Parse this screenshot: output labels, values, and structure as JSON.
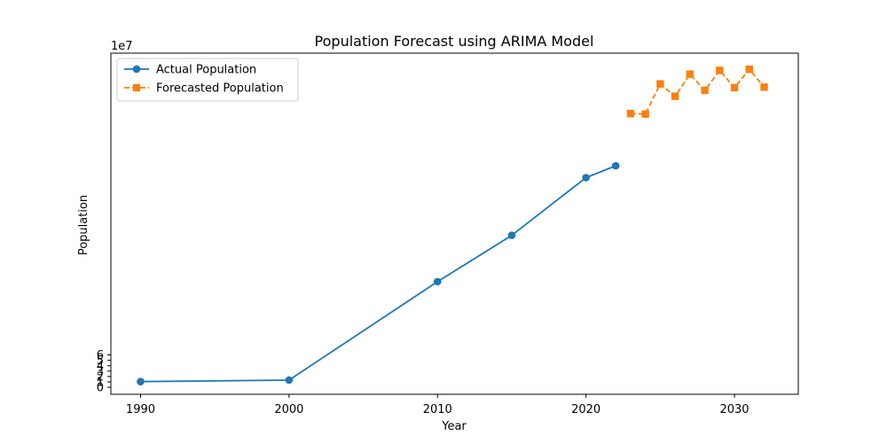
{
  "chart_data": {
    "type": "line",
    "title": "Population Forecast using ARIMA Model",
    "xlabel": "Year",
    "ylabel": "Population",
    "y_offset_label": "1e7",
    "xlim": [
      1988,
      2034.3
    ],
    "ylim": [
      -1.3,
      62.0
    ],
    "y_scale_factor": 10000000,
    "x_ticks": [
      1990,
      2000,
      2010,
      2020,
      2030
    ],
    "x_tick_labels": [
      "1990",
      "2000",
      "2010",
      "2020",
      "2030"
    ],
    "y_ticks": [
      0,
      1,
      2,
      3,
      4,
      5,
      6
    ],
    "y_tick_labels": [
      "0",
      "1",
      "2",
      "3",
      "4",
      "5",
      "6"
    ],
    "grid": false,
    "legend_position": "top-left",
    "series": [
      {
        "name": "Actual Population",
        "color": "#1f77b4",
        "line_style": "solid",
        "marker": "circle",
        "x": [
          1990,
          2000,
          2010,
          2015,
          2020,
          2022
        ],
        "y": [
          1.05,
          1.33,
          19.6,
          28.2,
          38.9,
          41.1
        ]
      },
      {
        "name": "Forecasted Population",
        "color": "#ff7f0e",
        "line_style": "dashed",
        "marker": "square",
        "x": [
          2023,
          2024,
          2025,
          2026,
          2027,
          2028,
          2029,
          2030,
          2031,
          2032
        ],
        "y": [
          50.8,
          50.7,
          56.3,
          54.0,
          58.1,
          55.1,
          58.8,
          55.6,
          59.0,
          55.7
        ]
      }
    ]
  }
}
